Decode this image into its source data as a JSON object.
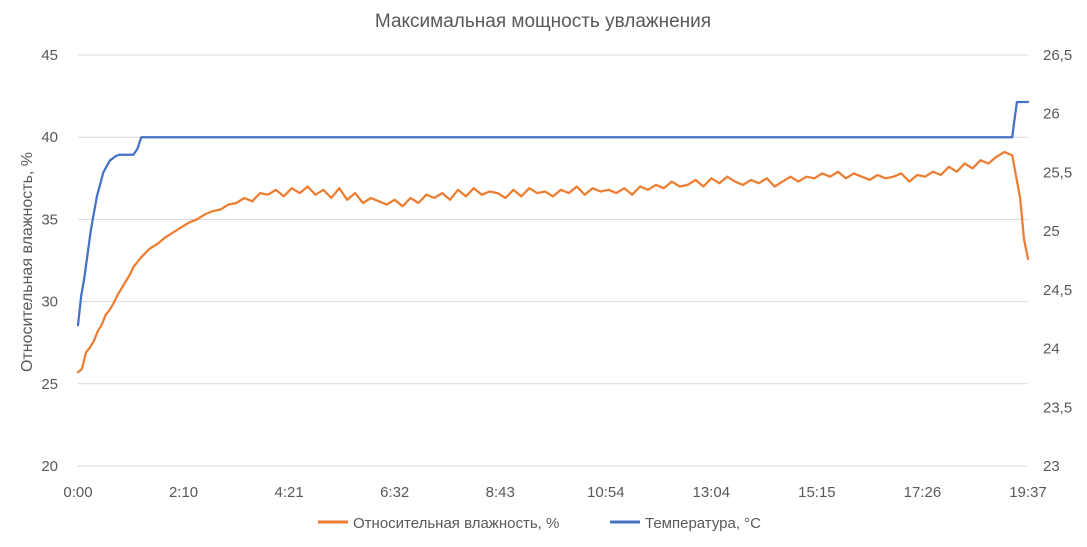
{
  "chart_data": {
    "type": "line",
    "title": "Максимальная мощность увлажнения",
    "ylabel": "Относительная влажность, %",
    "y2label": "",
    "xlabel": "",
    "x_ticks": [
      "0:00",
      "2:10",
      "4:21",
      "6:32",
      "8:43",
      "10:54",
      "13:04",
      "15:15",
      "17:26",
      "19:37"
    ],
    "y_ticks": [
      "20",
      "25",
      "30",
      "35",
      "40",
      "45"
    ],
    "y2_ticks": [
      "23",
      "23,5",
      "24",
      "24,5",
      "25",
      "25,5",
      "26",
      "26,5"
    ],
    "ylim": [
      20,
      45
    ],
    "y2lim": [
      23,
      26.5
    ],
    "x_unit": "minutes",
    "xlim": [
      0,
      1200
    ],
    "grid": true,
    "legend_position": "bottom",
    "series": [
      {
        "name": "Относительная влажность, %",
        "axis": "left",
        "color": "#ED7D31",
        "x": [
          0,
          5,
          10,
          15,
          20,
          25,
          30,
          35,
          40,
          45,
          50,
          55,
          60,
          65,
          70,
          80,
          90,
          100,
          110,
          120,
          130,
          140,
          150,
          160,
          170,
          180,
          190,
          200,
          210,
          220,
          230,
          240,
          250,
          260,
          270,
          280,
          290,
          300,
          310,
          320,
          330,
          340,
          350,
          360,
          370,
          380,
          390,
          400,
          410,
          420,
          430,
          440,
          450,
          460,
          470,
          480,
          490,
          500,
          510,
          520,
          530,
          540,
          550,
          560,
          570,
          580,
          590,
          600,
          610,
          620,
          630,
          640,
          650,
          660,
          670,
          680,
          690,
          700,
          710,
          720,
          730,
          740,
          750,
          760,
          770,
          780,
          790,
          800,
          810,
          820,
          830,
          840,
          850,
          860,
          870,
          880,
          890,
          900,
          910,
          920,
          930,
          940,
          950,
          960,
          970,
          980,
          990,
          1000,
          1010,
          1020,
          1030,
          1040,
          1050,
          1060,
          1070,
          1080,
          1090,
          1100,
          1110,
          1120,
          1130,
          1140,
          1150,
          1160,
          1170,
          1180,
          1190,
          1195,
          1200
        ],
        "y": [
          25.7,
          25.9,
          26.9,
          27.2,
          27.6,
          28.2,
          28.6,
          29.2,
          29.5,
          29.9,
          30.4,
          30.8,
          31.2,
          31.6,
          32.1,
          32.7,
          33.2,
          33.5,
          33.9,
          34.2,
          34.5,
          34.8,
          35.0,
          35.3,
          35.5,
          35.6,
          35.9,
          36.0,
          36.3,
          36.1,
          36.6,
          36.5,
          36.8,
          36.4,
          36.9,
          36.6,
          37.0,
          36.5,
          36.8,
          36.3,
          36.9,
          36.2,
          36.6,
          36.0,
          36.3,
          36.1,
          35.9,
          36.2,
          35.8,
          36.3,
          36.0,
          36.5,
          36.3,
          36.6,
          36.2,
          36.8,
          36.4,
          36.9,
          36.5,
          36.7,
          36.6,
          36.3,
          36.8,
          36.4,
          36.9,
          36.6,
          36.7,
          36.4,
          36.8,
          36.6,
          37.0,
          36.5,
          36.9,
          36.7,
          36.8,
          36.6,
          36.9,
          36.5,
          37.0,
          36.8,
          37.1,
          36.9,
          37.3,
          37.0,
          37.1,
          37.4,
          37.0,
          37.5,
          37.2,
          37.6,
          37.3,
          37.1,
          37.4,
          37.2,
          37.5,
          37.0,
          37.3,
          37.6,
          37.3,
          37.6,
          37.5,
          37.8,
          37.6,
          37.9,
          37.5,
          37.8,
          37.6,
          37.4,
          37.7,
          37.5,
          37.6,
          37.8,
          37.3,
          37.7,
          37.6,
          37.9,
          37.7,
          38.2,
          37.9,
          38.4,
          38.1,
          38.6,
          38.4,
          38.8,
          39.1,
          38.9,
          36.3,
          33.8,
          32.6
        ]
      },
      {
        "name": "Температура, °C",
        "axis": "right",
        "color": "#4472C4",
        "x": [
          0,
          4,
          8,
          12,
          16,
          20,
          24,
          28,
          32,
          36,
          40,
          44,
          48,
          52,
          56,
          60,
          70,
          75,
          80,
          85,
          90,
          95,
          100,
          115,
          120,
          140,
          180,
          230,
          235,
          240,
          250,
          300,
          400,
          455,
          460,
          500,
          505,
          520,
          560,
          600,
          640,
          700,
          760,
          800,
          840,
          900,
          960,
          1000,
          1040,
          1070,
          1100,
          1140,
          1180,
          1183,
          1186,
          1190,
          1195,
          1200
        ],
        "y": [
          24.2,
          24.45,
          24.6,
          24.8,
          25.0,
          25.15,
          25.3,
          25.4,
          25.5,
          25.55,
          25.6,
          25.62,
          25.64,
          25.65,
          25.65,
          25.65,
          25.65,
          25.7,
          25.8,
          25.8,
          25.8,
          25.8,
          25.8,
          25.8,
          25.8,
          25.8,
          25.8,
          25.8,
          25.8,
          25.8,
          25.8,
          25.8,
          25.8,
          25.8,
          25.8,
          25.8,
          25.8,
          25.8,
          25.8,
          25.8,
          25.8,
          25.8,
          25.8,
          25.8,
          25.8,
          25.8,
          25.8,
          25.8,
          25.8,
          25.8,
          25.8,
          25.8,
          25.8,
          25.95,
          26.1,
          26.1,
          26.1,
          26.1
        ]
      }
    ]
  }
}
